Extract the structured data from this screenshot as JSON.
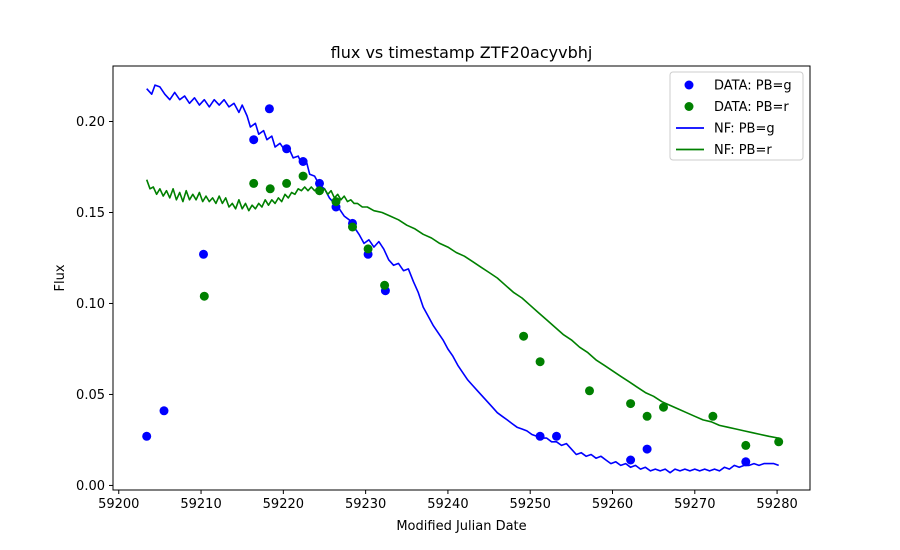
{
  "chart_data": {
    "type": "scatter",
    "title": "flux vs timestamp ZTF20acyvbhj",
    "xlabel": "Modified Julian Date",
    "ylabel": "Flux",
    "xlim": [
      59199.3,
      59284.0
    ],
    "ylim": [
      -0.0025,
      0.2305
    ],
    "xticks": [
      59200,
      59210,
      59220,
      59230,
      59240,
      59250,
      59260,
      59270,
      59280
    ],
    "yticks": [
      0.0,
      0.05,
      0.1,
      0.15,
      0.2
    ],
    "ytick_labels": [
      "0.00",
      "0.05",
      "0.10",
      "0.15",
      "0.20"
    ],
    "grid": false,
    "legend_position": "top-right",
    "series": [
      {
        "name": "DATA: PB=g",
        "kind": "scatter",
        "color": "#0000ff",
        "points": [
          [
            59203.4,
            0.027
          ],
          [
            59205.5,
            0.041
          ],
          [
            59210.3,
            0.127
          ],
          [
            59216.4,
            0.19
          ],
          [
            59218.3,
            0.207
          ],
          [
            59220.4,
            0.185
          ],
          [
            59222.4,
            0.178
          ],
          [
            59224.4,
            0.166
          ],
          [
            59226.4,
            0.153
          ],
          [
            59228.4,
            0.144
          ],
          [
            59230.3,
            0.127
          ],
          [
            59232.4,
            0.107
          ],
          [
            59251.2,
            0.027
          ],
          [
            59253.2,
            0.027
          ],
          [
            59262.2,
            0.014
          ],
          [
            59264.2,
            0.02
          ],
          [
            59276.2,
            0.013
          ]
        ]
      },
      {
        "name": "DATA: PB=r",
        "kind": "scatter",
        "color": "#008000",
        "points": [
          [
            59210.4,
            0.104
          ],
          [
            59216.4,
            0.166
          ],
          [
            59218.4,
            0.163
          ],
          [
            59220.4,
            0.166
          ],
          [
            59222.4,
            0.17
          ],
          [
            59224.4,
            0.162
          ],
          [
            59226.4,
            0.156
          ],
          [
            59228.4,
            0.142
          ],
          [
            59230.3,
            0.13
          ],
          [
            59232.3,
            0.11
          ],
          [
            59249.2,
            0.082
          ],
          [
            59251.2,
            0.068
          ],
          [
            59257.2,
            0.052
          ],
          [
            59262.2,
            0.045
          ],
          [
            59264.2,
            0.038
          ],
          [
            59266.2,
            0.043
          ],
          [
            59272.2,
            0.038
          ],
          [
            59276.2,
            0.022
          ],
          [
            59280.2,
            0.024
          ]
        ]
      },
      {
        "name": "NF: PB=g",
        "kind": "line",
        "color": "#0000ff",
        "points": [
          [
            59203.4,
            0.218
          ],
          [
            59204.0,
            0.215
          ],
          [
            59204.4,
            0.22
          ],
          [
            59205.0,
            0.219
          ],
          [
            59205.6,
            0.215
          ],
          [
            59206.2,
            0.212
          ],
          [
            59206.8,
            0.216
          ],
          [
            59207.4,
            0.212
          ],
          [
            59208.0,
            0.214
          ],
          [
            59208.6,
            0.21
          ],
          [
            59209.2,
            0.213
          ],
          [
            59209.8,
            0.209
          ],
          [
            59210.4,
            0.212
          ],
          [
            59211.0,
            0.208
          ],
          [
            59211.6,
            0.212
          ],
          [
            59212.2,
            0.209
          ],
          [
            59212.8,
            0.212
          ],
          [
            59213.4,
            0.208
          ],
          [
            59214.0,
            0.21
          ],
          [
            59214.6,
            0.205
          ],
          [
            59215.0,
            0.209
          ],
          [
            59215.6,
            0.203
          ],
          [
            59216.0,
            0.197
          ],
          [
            59216.6,
            0.199
          ],
          [
            59217.0,
            0.193
          ],
          [
            59217.6,
            0.195
          ],
          [
            59218.0,
            0.19
          ],
          [
            59218.6,
            0.192
          ],
          [
            59219.0,
            0.186
          ],
          [
            59219.6,
            0.188
          ],
          [
            59220.2,
            0.184
          ],
          [
            59220.6,
            0.186
          ],
          [
            59221.2,
            0.18
          ],
          [
            59221.8,
            0.181
          ],
          [
            59222.2,
            0.177
          ],
          [
            59222.8,
            0.178
          ],
          [
            59223.2,
            0.171
          ],
          [
            59223.8,
            0.17
          ],
          [
            59224.4,
            0.165
          ],
          [
            59225.0,
            0.163
          ],
          [
            59225.6,
            0.158
          ],
          [
            59226.2,
            0.155
          ],
          [
            59226.8,
            0.152
          ],
          [
            59227.4,
            0.148
          ],
          [
            59228.0,
            0.146
          ],
          [
            59228.6,
            0.142
          ],
          [
            59229.2,
            0.138
          ],
          [
            59229.8,
            0.133
          ],
          [
            59230.4,
            0.135
          ],
          [
            59231.0,
            0.131
          ],
          [
            59231.6,
            0.134
          ],
          [
            59232.2,
            0.13
          ],
          [
            59232.8,
            0.124
          ],
          [
            59233.4,
            0.121
          ],
          [
            59234.0,
            0.122
          ],
          [
            59234.6,
            0.118
          ],
          [
            59235.2,
            0.119
          ],
          [
            59235.8,
            0.112
          ],
          [
            59236.4,
            0.106
          ],
          [
            59237.0,
            0.098
          ],
          [
            59237.6,
            0.093
          ],
          [
            59238.2,
            0.088
          ],
          [
            59238.8,
            0.084
          ],
          [
            59239.4,
            0.08
          ],
          [
            59240.0,
            0.075
          ],
          [
            59240.6,
            0.071
          ],
          [
            59241.2,
            0.066
          ],
          [
            59241.8,
            0.062
          ],
          [
            59242.4,
            0.058
          ],
          [
            59243.0,
            0.055
          ],
          [
            59243.6,
            0.052
          ],
          [
            59244.2,
            0.049
          ],
          [
            59244.8,
            0.046
          ],
          [
            59245.4,
            0.043
          ],
          [
            59246.0,
            0.04
          ],
          [
            59246.6,
            0.038
          ],
          [
            59247.2,
            0.036
          ],
          [
            59247.8,
            0.034
          ],
          [
            59248.4,
            0.032
          ],
          [
            59249.0,
            0.031
          ],
          [
            59249.6,
            0.03
          ],
          [
            59250.2,
            0.028
          ],
          [
            59250.8,
            0.027
          ],
          [
            59251.4,
            0.026
          ],
          [
            59252.0,
            0.026
          ],
          [
            59252.6,
            0.024
          ],
          [
            59253.2,
            0.024
          ],
          [
            59253.8,
            0.022
          ],
          [
            59254.4,
            0.023
          ],
          [
            59255.0,
            0.02
          ],
          [
            59255.6,
            0.017
          ],
          [
            59256.2,
            0.018
          ],
          [
            59256.8,
            0.016
          ],
          [
            59257.4,
            0.017
          ],
          [
            59258.0,
            0.015
          ],
          [
            59258.6,
            0.016
          ],
          [
            59259.2,
            0.014
          ],
          [
            59259.8,
            0.012
          ],
          [
            59260.4,
            0.013
          ],
          [
            59261.0,
            0.011
          ],
          [
            59261.6,
            0.012
          ],
          [
            59262.2,
            0.01
          ],
          [
            59262.8,
            0.011
          ],
          [
            59263.4,
            0.009
          ],
          [
            59264.0,
            0.01
          ],
          [
            59264.6,
            0.008
          ],
          [
            59265.2,
            0.009
          ],
          [
            59265.8,
            0.008
          ],
          [
            59266.4,
            0.009
          ],
          [
            59267.0,
            0.007
          ],
          [
            59267.6,
            0.009
          ],
          [
            59268.2,
            0.008
          ],
          [
            59268.8,
            0.009
          ],
          [
            59269.4,
            0.008
          ],
          [
            59270.0,
            0.009
          ],
          [
            59270.6,
            0.008
          ],
          [
            59271.2,
            0.009
          ],
          [
            59271.8,
            0.008
          ],
          [
            59272.4,
            0.009
          ],
          [
            59273.0,
            0.008
          ],
          [
            59273.6,
            0.01
          ],
          [
            59274.2,
            0.009
          ],
          [
            59274.8,
            0.011
          ],
          [
            59275.4,
            0.01
          ],
          [
            59276.0,
            0.011
          ],
          [
            59276.6,
            0.011
          ],
          [
            59277.2,
            0.012
          ],
          [
            59277.8,
            0.011
          ],
          [
            59278.4,
            0.012
          ],
          [
            59279.0,
            0.012
          ],
          [
            59279.6,
            0.012
          ],
          [
            59280.2,
            0.011
          ]
        ]
      },
      {
        "name": "NF: PB=r",
        "kind": "line",
        "color": "#008000",
        "points": [
          [
            59203.4,
            0.168
          ],
          [
            59203.8,
            0.163
          ],
          [
            59204.2,
            0.164
          ],
          [
            59204.6,
            0.16
          ],
          [
            59205.0,
            0.163
          ],
          [
            59205.4,
            0.159
          ],
          [
            59205.8,
            0.162
          ],
          [
            59206.2,
            0.158
          ],
          [
            59206.6,
            0.163
          ],
          [
            59207.0,
            0.157
          ],
          [
            59207.4,
            0.161
          ],
          [
            59207.8,
            0.156
          ],
          [
            59208.2,
            0.162
          ],
          [
            59208.6,
            0.157
          ],
          [
            59209.0,
            0.16
          ],
          [
            59209.4,
            0.157
          ],
          [
            59209.8,
            0.161
          ],
          [
            59210.2,
            0.156
          ],
          [
            59210.6,
            0.159
          ],
          [
            59211.0,
            0.156
          ],
          [
            59211.4,
            0.158
          ],
          [
            59211.8,
            0.155
          ],
          [
            59212.2,
            0.159
          ],
          [
            59212.6,
            0.155
          ],
          [
            59213.0,
            0.158
          ],
          [
            59213.4,
            0.153
          ],
          [
            59213.8,
            0.155
          ],
          [
            59214.2,
            0.152
          ],
          [
            59214.6,
            0.157
          ],
          [
            59215.0,
            0.152
          ],
          [
            59215.4,
            0.155
          ],
          [
            59215.8,
            0.151
          ],
          [
            59216.2,
            0.154
          ],
          [
            59216.6,
            0.152
          ],
          [
            59217.0,
            0.155
          ],
          [
            59217.4,
            0.153
          ],
          [
            59217.8,
            0.157
          ],
          [
            59218.2,
            0.154
          ],
          [
            59218.6,
            0.157
          ],
          [
            59219.0,
            0.155
          ],
          [
            59219.4,
            0.158
          ],
          [
            59219.8,
            0.156
          ],
          [
            59220.2,
            0.16
          ],
          [
            59220.6,
            0.158
          ],
          [
            59221.0,
            0.161
          ],
          [
            59221.4,
            0.16
          ],
          [
            59221.8,
            0.163
          ],
          [
            59222.2,
            0.162
          ],
          [
            59222.6,
            0.164
          ],
          [
            59223.0,
            0.162
          ],
          [
            59223.4,
            0.164
          ],
          [
            59223.8,
            0.162
          ],
          [
            59224.2,
            0.163
          ],
          [
            59224.6,
            0.161
          ],
          [
            59225.0,
            0.163
          ],
          [
            59225.4,
            0.16
          ],
          [
            59225.8,
            0.162
          ],
          [
            59226.2,
            0.158
          ],
          [
            59226.6,
            0.16
          ],
          [
            59227.0,
            0.157
          ],
          [
            59227.4,
            0.159
          ],
          [
            59227.8,
            0.156
          ],
          [
            59228.2,
            0.157
          ],
          [
            59228.6,
            0.155
          ],
          [
            59229.0,
            0.155
          ],
          [
            59229.6,
            0.153
          ],
          [
            59230.2,
            0.153
          ],
          [
            59231.0,
            0.151
          ],
          [
            59232.0,
            0.15
          ],
          [
            59233.0,
            0.148
          ],
          [
            59234.0,
            0.146
          ],
          [
            59235.0,
            0.143
          ],
          [
            59236.0,
            0.141
          ],
          [
            59237.0,
            0.138
          ],
          [
            59238.0,
            0.136
          ],
          [
            59239.0,
            0.133
          ],
          [
            59240.0,
            0.131
          ],
          [
            59241.0,
            0.128
          ],
          [
            59242.0,
            0.126
          ],
          [
            59243.0,
            0.123
          ],
          [
            59244.0,
            0.12
          ],
          [
            59245.0,
            0.117
          ],
          [
            59246.0,
            0.114
          ],
          [
            59247.0,
            0.11
          ],
          [
            59248.0,
            0.106
          ],
          [
            59249.0,
            0.103
          ],
          [
            59250.0,
            0.099
          ],
          [
            59251.0,
            0.095
          ],
          [
            59252.0,
            0.091
          ],
          [
            59253.0,
            0.087
          ],
          [
            59254.0,
            0.083
          ],
          [
            59255.0,
            0.08
          ],
          [
            59256.0,
            0.076
          ],
          [
            59257.0,
            0.073
          ],
          [
            59258.0,
            0.069
          ],
          [
            59259.0,
            0.066
          ],
          [
            59260.0,
            0.063
          ],
          [
            59261.0,
            0.06
          ],
          [
            59262.0,
            0.057
          ],
          [
            59263.0,
            0.054
          ],
          [
            59264.0,
            0.051
          ],
          [
            59265.0,
            0.049
          ],
          [
            59266.0,
            0.046
          ],
          [
            59267.0,
            0.044
          ],
          [
            59268.0,
            0.042
          ],
          [
            59269.0,
            0.04
          ],
          [
            59270.0,
            0.038
          ],
          [
            59271.0,
            0.036
          ],
          [
            59272.0,
            0.035
          ],
          [
            59273.0,
            0.033
          ],
          [
            59274.0,
            0.032
          ],
          [
            59275.0,
            0.031
          ],
          [
            59276.0,
            0.03
          ],
          [
            59277.0,
            0.029
          ],
          [
            59278.0,
            0.028
          ],
          [
            59279.0,
            0.027
          ],
          [
            59280.2,
            0.026
          ]
        ]
      }
    ]
  }
}
